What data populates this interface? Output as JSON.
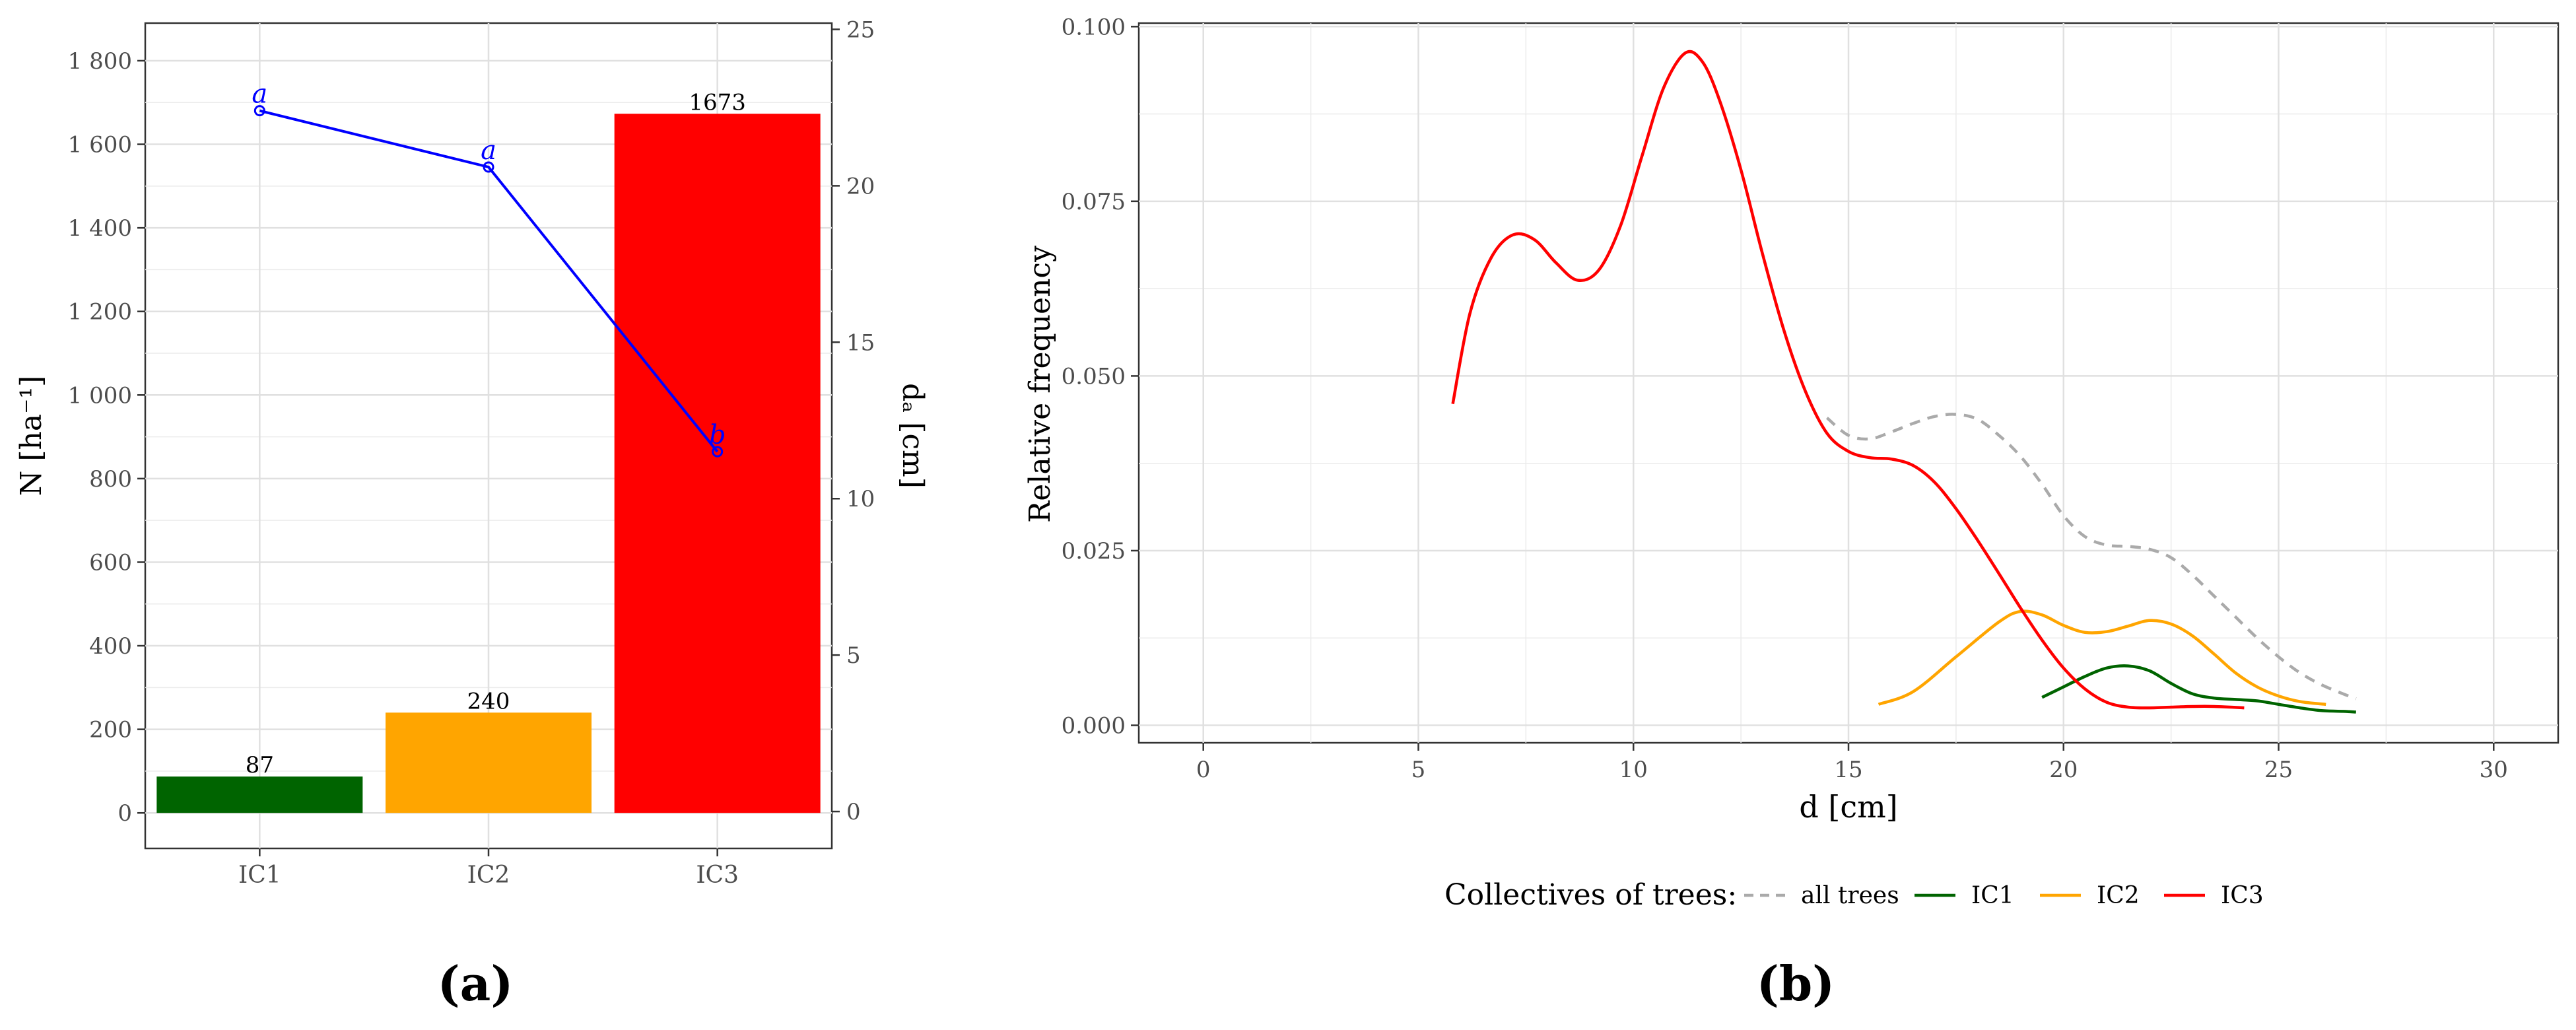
{
  "panel_a": {
    "label": "(a)",
    "chart_data": {
      "type": "bar",
      "categories": [
        "IC1",
        "IC2",
        "IC3"
      ],
      "values": [
        87,
        240,
        1673
      ],
      "bar_colors": [
        "#006400",
        "#FFA500",
        "#FF0000"
      ],
      "ylabel": "N [ha⁻¹]",
      "ylim": [
        -85,
        1890
      ],
      "yticks": [
        0,
        200,
        400,
        600,
        800,
        1000,
        1200,
        1400,
        1600,
        1800
      ],
      "ytick_labels": [
        "0",
        "200",
        "400",
        "600",
        "800",
        "1 000",
        "1 200",
        "1 400",
        "1 600",
        "1 800"
      ],
      "y2label": "dₐ [cm]",
      "y2lim": [
        -1.18,
        25.2
      ],
      "y2ticks": [
        0,
        5,
        10,
        15,
        20,
        25
      ],
      "y2tick_labels": [
        "0",
        "5",
        "10",
        "15",
        "20",
        "25"
      ],
      "line_series": {
        "values": [
          22.4,
          20.6,
          11.5
        ],
        "letters": [
          "a",
          "a",
          "b"
        ],
        "color": "#0000FF"
      },
      "grid": true
    }
  },
  "panel_b": {
    "label": "(b)",
    "chart_data": {
      "type": "line",
      "xlabel": "d [cm]",
      "ylabel": "Relative frequency",
      "xlim": [
        -1.5,
        31.5
      ],
      "ylim": [
        -0.0025,
        0.1005
      ],
      "xticks": [
        0,
        5,
        10,
        15,
        20,
        25,
        30
      ],
      "yticks": [
        0.0,
        0.025,
        0.05,
        0.075,
        0.1
      ],
      "ytick_labels": [
        "0.000",
        "0.025",
        "0.050",
        "0.075",
        "0.100"
      ],
      "grid": true,
      "legend": {
        "title": "Collectives of trees:",
        "position": "bottom"
      },
      "series": [
        {
          "name": "all trees",
          "color": "#AAAAAA",
          "dashed": true,
          "points": [
            [
              14.5,
              0.044
            ],
            [
              15,
              0.0415
            ],
            [
              15.5,
              0.041
            ],
            [
              16,
              0.042
            ],
            [
              16.5,
              0.0432
            ],
            [
              17,
              0.0442
            ],
            [
              17.5,
              0.0445
            ],
            [
              18,
              0.0438
            ],
            [
              18.5,
              0.0415
            ],
            [
              19,
              0.0385
            ],
            [
              19.5,
              0.0345
            ],
            [
              20,
              0.03
            ],
            [
              20.5,
              0.027
            ],
            [
              21,
              0.0258
            ],
            [
              21.5,
              0.0256
            ],
            [
              22,
              0.0252
            ],
            [
              22.5,
              0.024
            ],
            [
              23,
              0.0215
            ],
            [
              23.5,
              0.0185
            ],
            [
              24,
              0.0155
            ],
            [
              24.5,
              0.0125
            ],
            [
              25,
              0.0098
            ],
            [
              25.5,
              0.0075
            ],
            [
              26,
              0.0058
            ],
            [
              26.5,
              0.0045
            ],
            [
              26.8,
              0.0038
            ]
          ]
        },
        {
          "name": "IC1",
          "color": "#006400",
          "dashed": false,
          "points": [
            [
              19.5,
              0.004
            ],
            [
              20,
              0.0055
            ],
            [
              20.5,
              0.007
            ],
            [
              21,
              0.0082
            ],
            [
              21.5,
              0.0085
            ],
            [
              22,
              0.0078
            ],
            [
              22.5,
              0.006
            ],
            [
              23,
              0.0045
            ],
            [
              23.5,
              0.0039
            ],
            [
              24,
              0.0037
            ],
            [
              24.5,
              0.0035
            ],
            [
              25,
              0.003
            ],
            [
              25.5,
              0.0025
            ],
            [
              26,
              0.0021
            ],
            [
              26.5,
              0.002
            ],
            [
              26.8,
              0.0019
            ]
          ]
        },
        {
          "name": "IC2",
          "color": "#FFA500",
          "dashed": false,
          "points": [
            [
              15.7,
              0.003
            ],
            [
              16.5,
              0.0048
            ],
            [
              17.5,
              0.0098
            ],
            [
              18.5,
              0.0148
            ],
            [
              19,
              0.0163
            ],
            [
              19.5,
              0.0158
            ],
            [
              20,
              0.0143
            ],
            [
              20.5,
              0.0133
            ],
            [
              21,
              0.0134
            ],
            [
              21.5,
              0.0142
            ],
            [
              22,
              0.015
            ],
            [
              22.5,
              0.0145
            ],
            [
              23,
              0.0128
            ],
            [
              23.5,
              0.0102
            ],
            [
              24,
              0.0075
            ],
            [
              24.5,
              0.0055
            ],
            [
              25,
              0.0042
            ],
            [
              25.5,
              0.0034
            ],
            [
              26.1,
              0.003
            ]
          ]
        },
        {
          "name": "IC3",
          "color": "#FF0000",
          "dashed": false,
          "points": [
            [
              5.8,
              0.046
            ],
            [
              6.2,
              0.059
            ],
            [
              6.7,
              0.067
            ],
            [
              7.2,
              0.0702
            ],
            [
              7.7,
              0.0695
            ],
            [
              8.2,
              0.0662
            ],
            [
              8.7,
              0.0637
            ],
            [
              9.2,
              0.0652
            ],
            [
              9.7,
              0.0715
            ],
            [
              10.2,
              0.0815
            ],
            [
              10.7,
              0.0912
            ],
            [
              11.2,
              0.0962
            ],
            [
              11.6,
              0.095
            ],
            [
              12,
              0.0895
            ],
            [
              12.5,
              0.0795
            ],
            [
              13,
              0.0675
            ],
            [
              13.5,
              0.0565
            ],
            [
              14,
              0.0478
            ],
            [
              14.5,
              0.0418
            ],
            [
              15,
              0.0392
            ],
            [
              15.5,
              0.0383
            ],
            [
              16,
              0.0381
            ],
            [
              16.5,
              0.0372
            ],
            [
              17,
              0.0348
            ],
            [
              17.5,
              0.031
            ],
            [
              18,
              0.0265
            ],
            [
              18.5,
              0.0217
            ],
            [
              19,
              0.0168
            ],
            [
              19.5,
              0.0122
            ],
            [
              20,
              0.0082
            ],
            [
              20.5,
              0.0052
            ],
            [
              21,
              0.0033
            ],
            [
              21.5,
              0.0026
            ],
            [
              22,
              0.0025
            ],
            [
              22.5,
              0.0026
            ],
            [
              23,
              0.0027
            ],
            [
              23.5,
              0.0027
            ],
            [
              24.2,
              0.0025
            ]
          ]
        }
      ]
    }
  }
}
